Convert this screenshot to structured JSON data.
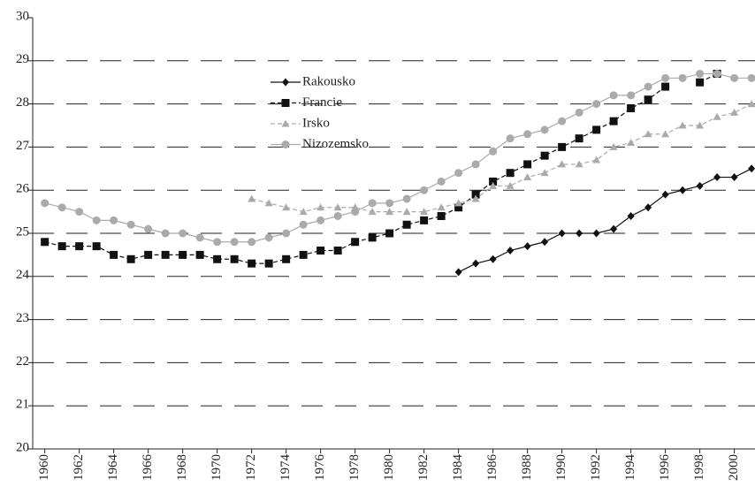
{
  "chart_data": {
    "type": "line",
    "x": [
      1960,
      1961,
      1962,
      1963,
      1964,
      1965,
      1966,
      1967,
      1968,
      1969,
      1970,
      1971,
      1972,
      1973,
      1974,
      1975,
      1976,
      1977,
      1978,
      1979,
      1980,
      1981,
      1982,
      1983,
      1984,
      1985,
      1986,
      1987,
      1988,
      1989,
      1990,
      1991,
      1992,
      1993,
      1994,
      1995,
      1996,
      1997,
      1998,
      1999,
      2000,
      2001
    ],
    "series": [
      {
        "name": "Rakousko",
        "color": "#111111",
        "values": [
          null,
          null,
          null,
          null,
          null,
          null,
          null,
          null,
          null,
          null,
          null,
          null,
          null,
          null,
          null,
          null,
          null,
          null,
          null,
          null,
          null,
          null,
          null,
          null,
          24.1,
          24.3,
          24.4,
          24.6,
          24.7,
          24.8,
          25.0,
          25.0,
          25.0,
          25.1,
          25.4,
          25.6,
          25.9,
          26.0,
          26.1,
          26.3,
          26.3,
          26.5
        ]
      },
      {
        "name": "Francie",
        "color": "#111111",
        "values": [
          24.8,
          24.7,
          24.7,
          24.7,
          24.5,
          24.4,
          24.5,
          24.5,
          24.5,
          24.5,
          24.4,
          24.4,
          24.3,
          24.3,
          24.4,
          24.5,
          24.6,
          24.6,
          24.8,
          24.9,
          25.0,
          25.2,
          25.3,
          25.4,
          25.6,
          25.9,
          26.2,
          26.4,
          26.6,
          26.8,
          27.0,
          27.2,
          27.4,
          27.6,
          27.9,
          28.1,
          28.4,
          null,
          28.5,
          28.7,
          null,
          null
        ]
      },
      {
        "name": "Irsko",
        "color": "#aaaaaa",
        "values": [
          null,
          null,
          null,
          null,
          null,
          null,
          null,
          null,
          null,
          null,
          null,
          null,
          25.8,
          25.7,
          25.6,
          25.5,
          25.6,
          25.6,
          25.6,
          25.5,
          25.5,
          25.5,
          25.5,
          25.6,
          25.7,
          25.8,
          26.1,
          26.1,
          26.3,
          26.4,
          26.6,
          26.6,
          26.7,
          27.0,
          27.1,
          27.3,
          27.3,
          27.5,
          27.5,
          27.7,
          27.8,
          28.0
        ]
      },
      {
        "name": "Nizozemsko",
        "color": "#aaaaaa",
        "values": [
          25.7,
          25.6,
          25.5,
          25.3,
          25.3,
          25.2,
          25.1,
          25.0,
          25.0,
          24.9,
          24.8,
          24.8,
          24.8,
          24.9,
          25.0,
          25.2,
          25.3,
          25.4,
          25.5,
          25.7,
          25.7,
          25.8,
          26.0,
          26.2,
          26.4,
          26.6,
          26.9,
          27.2,
          27.3,
          27.4,
          27.6,
          27.8,
          28.0,
          28.2,
          28.2,
          28.4,
          28.6,
          28.6,
          28.7,
          28.7,
          28.6,
          28.6
        ]
      }
    ],
    "xlim": [
      1959.3,
      2001.2
    ],
    "xticks": [
      1960,
      1962,
      1964,
      1966,
      1968,
      1970,
      1972,
      1974,
      1976,
      1978,
      1980,
      1982,
      1984,
      1986,
      1988,
      1990,
      1992,
      1994,
      1996,
      1998,
      2000
    ],
    "ylim": [
      20,
      30
    ],
    "yticks": [
      20,
      21,
      22,
      23,
      24,
      25,
      26,
      27,
      28,
      29,
      30
    ],
    "grid": true
  }
}
